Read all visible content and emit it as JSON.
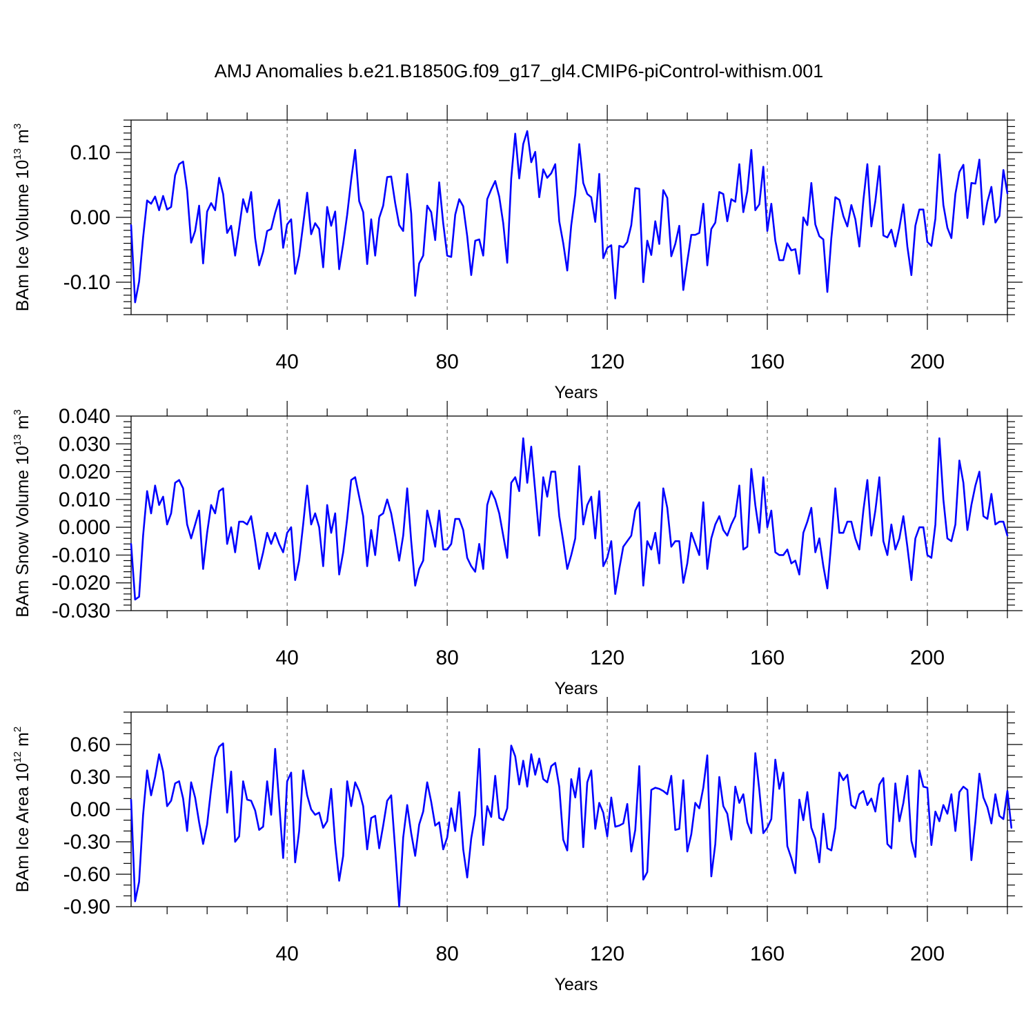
{
  "title": "AMJ Anomalies b.e21.B1850G.f09_g17_gl4.CMIP6-piControl-withism.001",
  "colors": {
    "series": "#0000ff",
    "axes": "#000000",
    "grid": "#555555"
  },
  "chart_data": [
    {
      "type": "line",
      "ylabel": {
        "main": "BAm Ice Volume 10",
        "exp": "13",
        "unit": " m",
        "unit_exp": "3"
      },
      "xlabel": "Years",
      "xlim": [
        1,
        220
      ],
      "ylim": [
        -0.15,
        0.15
      ],
      "xticks": [
        40,
        80,
        120,
        160,
        200
      ],
      "xtick_labels": [
        "40",
        "80",
        "120",
        "160",
        "200"
      ],
      "yticks": [
        -0.1,
        0.0,
        0.1
      ],
      "ytick_labels": [
        "-0.10",
        "0.00",
        "0.10"
      ],
      "yminor": 0.01,
      "xminor": 10,
      "grid": "dashed vertical at major x ticks",
      "series": [
        {
          "x_start": 1,
          "x_step": 1,
          "values": [
            -0.012,
            -0.131,
            -0.099,
            -0.031,
            0.026,
            0.021,
            0.032,
            0.011,
            0.033,
            0.012,
            0.016,
            0.065,
            0.082,
            0.086,
            0.041,
            -0.039,
            -0.021,
            0.018,
            -0.071,
            0.009,
            0.022,
            0.011,
            0.061,
            0.036,
            -0.024,
            -0.013,
            -0.059,
            -0.017,
            0.028,
            0.008,
            0.039,
            -0.032,
            -0.074,
            -0.053,
            -0.021,
            -0.018,
            0.007,
            0.027,
            -0.047,
            -0.011,
            -0.003,
            -0.087,
            -0.059,
            -0.011,
            0.038,
            -0.026,
            -0.009,
            -0.018,
            -0.077,
            0.016,
            -0.013,
            0.009,
            -0.08,
            -0.041,
            0.004,
            0.058,
            0.104,
            0.025,
            0.008,
            -0.072,
            -0.003,
            -0.059,
            -0.001,
            0.018,
            0.062,
            0.063,
            0.022,
            -0.012,
            -0.021,
            0.067,
            0.006,
            -0.121,
            -0.071,
            -0.059,
            0.018,
            0.008,
            -0.035,
            0.054,
            -0.009,
            -0.059,
            -0.061,
            0.004,
            0.028,
            0.017,
            -0.029,
            -0.089,
            -0.036,
            -0.034,
            -0.059,
            0.028,
            0.043,
            0.056,
            0.032,
            -0.009,
            -0.07,
            0.06,
            0.129,
            0.06,
            0.113,
            0.133,
            0.085,
            0.101,
            0.031,
            0.074,
            0.061,
            0.068,
            0.082,
            -0.006,
            -0.04,
            -0.082,
            -0.012,
            0.035,
            0.113,
            0.053,
            0.036,
            0.031,
            -0.007,
            0.067,
            -0.063,
            -0.047,
            -0.043,
            -0.125,
            -0.044,
            -0.046,
            -0.038,
            -0.012,
            0.045,
            0.044,
            -0.1,
            -0.036,
            -0.058,
            -0.006,
            -0.041,
            0.042,
            0.03,
            -0.06,
            -0.041,
            -0.013,
            -0.112,
            -0.068,
            -0.027,
            -0.027,
            -0.024,
            0.021,
            -0.074,
            -0.018,
            -0.008,
            0.039,
            0.036,
            -0.006,
            0.028,
            0.024,
            0.082,
            0.008,
            0.04,
            0.104,
            0.011,
            0.02,
            0.078,
            -0.021,
            0.021,
            -0.036,
            -0.066,
            -0.066,
            -0.04,
            -0.051,
            -0.049,
            -0.087,
            0.0,
            -0.012,
            0.053,
            -0.011,
            -0.029,
            -0.034,
            -0.115,
            -0.032,
            0.031,
            0.027,
            0.002,
            -0.014,
            0.019,
            -0.003,
            -0.045,
            0.026,
            0.082,
            -0.014,
            0.025,
            0.079,
            -0.028,
            -0.031,
            -0.019,
            -0.045,
            -0.016,
            0.02,
            -0.045,
            -0.089,
            -0.013,
            0.012,
            0.012,
            -0.038,
            -0.044,
            -0.002,
            0.097,
            0.019,
            -0.016,
            -0.032,
            0.036,
            0.07,
            0.081,
            -0.001,
            0.053,
            0.052,
            0.089,
            -0.011,
            0.024,
            0.047,
            -0.008,
            0.002,
            0.073,
            0.037
          ]
        }
      ]
    },
    {
      "type": "line",
      "ylabel": {
        "main": "BAm Snow Volume 10",
        "exp": "13",
        "unit": " m",
        "unit_exp": "3"
      },
      "xlabel": "Years",
      "xlim": [
        1,
        220
      ],
      "ylim": [
        -0.03,
        0.04
      ],
      "xticks": [
        40,
        80,
        120,
        160,
        200
      ],
      "xtick_labels": [
        "40",
        "80",
        "120",
        "160",
        "200"
      ],
      "yticks": [
        -0.03,
        -0.02,
        -0.01,
        0.0,
        0.01,
        0.02,
        0.03,
        0.04
      ],
      "ytick_labels": [
        "-0.030",
        "-0.020",
        "-0.010",
        "0.000",
        "0.010",
        "0.020",
        "0.030",
        "0.040"
      ],
      "yminor": 0.002,
      "xminor": 10,
      "grid": "dashed vertical at major x ticks",
      "series": [
        {
          "x_start": 1,
          "x_step": 1,
          "values": [
            -0.006,
            -0.026,
            -0.025,
            -0.003,
            0.013,
            0.005,
            0.015,
            0.008,
            0.011,
            0.001,
            0.005,
            0.016,
            0.017,
            0.014,
            0.001,
            -0.004,
            0.001,
            0.006,
            -0.015,
            -0.002,
            0.008,
            0.005,
            0.013,
            0.014,
            -0.006,
            0.0,
            -0.009,
            0.002,
            0.002,
            0.001,
            0.004,
            -0.005,
            -0.015,
            -0.009,
            -0.002,
            -0.006,
            -0.002,
            -0.006,
            -0.009,
            -0.002,
            0.0,
            -0.019,
            -0.012,
            0.001,
            0.015,
            0.001,
            0.005,
            0.0,
            -0.014,
            0.008,
            -0.002,
            0.005,
            -0.017,
            -0.009,
            0.003,
            0.017,
            0.018,
            0.011,
            0.004,
            -0.014,
            -0.001,
            -0.01,
            0.004,
            0.005,
            0.01,
            0.005,
            -0.003,
            -0.012,
            -0.003,
            0.014,
            -0.005,
            -0.021,
            -0.015,
            -0.012,
            0.006,
            0.0,
            -0.007,
            0.006,
            -0.008,
            -0.008,
            -0.006,
            0.003,
            0.003,
            -0.001,
            -0.011,
            -0.014,
            -0.016,
            -0.006,
            -0.015,
            0.008,
            0.013,
            0.01,
            0.005,
            -0.003,
            -0.011,
            0.016,
            0.018,
            0.013,
            0.032,
            0.016,
            0.029,
            0.013,
            -0.003,
            0.018,
            0.011,
            0.02,
            0.02,
            0.004,
            -0.005,
            -0.015,
            -0.01,
            -0.004,
            0.022,
            0.001,
            0.008,
            0.011,
            -0.004,
            0.013,
            -0.014,
            -0.011,
            -0.005,
            -0.024,
            -0.015,
            -0.007,
            -0.005,
            -0.003,
            0.006,
            0.009,
            -0.021,
            -0.005,
            -0.008,
            -0.002,
            -0.013,
            0.014,
            0.007,
            -0.007,
            -0.005,
            -0.005,
            -0.02,
            -0.013,
            -0.002,
            -0.006,
            -0.01,
            0.009,
            -0.015,
            -0.004,
            0.001,
            0.004,
            -0.001,
            -0.003,
            0.001,
            0.004,
            0.015,
            -0.008,
            -0.007,
            0.021,
            0.008,
            -0.002,
            0.018,
            0.0,
            0.006,
            -0.009,
            -0.01,
            -0.01,
            -0.008,
            -0.013,
            -0.012,
            -0.017,
            -0.002,
            0.002,
            0.007,
            -0.009,
            -0.004,
            -0.014,
            -0.022,
            -0.005,
            0.014,
            -0.002,
            -0.002,
            0.002,
            0.002,
            -0.004,
            -0.008,
            0.006,
            0.017,
            -0.003,
            0.006,
            0.018,
            -0.005,
            -0.01,
            0.001,
            -0.008,
            -0.004,
            0.004,
            -0.007,
            -0.019,
            -0.004,
            0.0,
            0.0,
            -0.01,
            -0.011,
            0.001,
            0.032,
            0.01,
            -0.004,
            -0.005,
            0.001,
            0.024,
            0.016,
            -0.001,
            0.008,
            0.015,
            0.02,
            0.004,
            0.003,
            0.012,
            0.001,
            0.002,
            0.002,
            -0.003
          ]
        }
      ]
    },
    {
      "type": "line",
      "ylabel": {
        "main": "BAm Ice Area 10",
        "exp": "12",
        "unit": " m",
        "unit_exp": "2"
      },
      "xlabel": "Years",
      "xlim": [
        1,
        220
      ],
      "ylim": [
        -0.9,
        0.9
      ],
      "xticks": [
        40,
        80,
        120,
        160,
        200
      ],
      "xtick_labels": [
        "40",
        "80",
        "120",
        "160",
        "200"
      ],
      "yticks": [
        -0.9,
        -0.6,
        -0.3,
        0.0,
        0.3,
        0.6
      ],
      "ytick_labels": [
        "-0.90",
        "-0.60",
        "-0.30",
        "0.00",
        "0.30",
        "0.60"
      ],
      "yminor": 0.1,
      "xminor": 10,
      "grid": "dashed vertical at major x ticks",
      "series": [
        {
          "x_start": 1,
          "x_step": 1,
          "values": [
            0.09,
            -0.85,
            -0.67,
            -0.05,
            0.36,
            0.13,
            0.3,
            0.51,
            0.35,
            0.03,
            0.08,
            0.24,
            0.26,
            0.1,
            -0.2,
            0.25,
            0.11,
            -0.12,
            -0.32,
            -0.14,
            0.19,
            0.48,
            0.58,
            0.61,
            -0.03,
            0.35,
            -0.3,
            -0.25,
            0.26,
            0.09,
            0.08,
            -0.01,
            -0.19,
            -0.16,
            0.26,
            -0.05,
            0.56,
            0.06,
            -0.45,
            0.26,
            0.34,
            -0.49,
            -0.2,
            0.36,
            0.13,
            0.0,
            -0.05,
            -0.03,
            -0.17,
            -0.11,
            0.19,
            -0.31,
            -0.66,
            -0.43,
            0.26,
            0.03,
            0.25,
            0.17,
            0.03,
            -0.37,
            -0.08,
            -0.06,
            -0.36,
            -0.15,
            0.08,
            0.13,
            -0.37,
            -0.9,
            -0.26,
            0.04,
            -0.22,
            -0.43,
            -0.14,
            -0.02,
            0.25,
            0.07,
            -0.15,
            -0.12,
            -0.37,
            -0.26,
            0.01,
            -0.2,
            0.16,
            -0.37,
            -0.63,
            -0.27,
            -0.05,
            0.56,
            -0.33,
            0.03,
            -0.07,
            0.31,
            -0.08,
            -0.1,
            0.01,
            0.59,
            0.49,
            0.23,
            0.45,
            0.21,
            0.51,
            0.32,
            0.47,
            0.28,
            0.25,
            0.4,
            0.43,
            0.21,
            -0.28,
            -0.38,
            0.28,
            0.11,
            0.38,
            -0.35,
            0.25,
            0.36,
            -0.18,
            0.06,
            -0.03,
            -0.25,
            0.11,
            -0.16,
            -0.15,
            -0.13,
            0.05,
            -0.39,
            -0.19,
            0.4,
            -0.65,
            -0.58,
            0.18,
            0.2,
            0.19,
            0.17,
            0.14,
            0.31,
            -0.19,
            -0.18,
            0.27,
            -0.39,
            -0.23,
            0.06,
            0.01,
            0.2,
            0.5,
            -0.62,
            -0.32,
            0.3,
            0.03,
            -0.04,
            -0.28,
            0.21,
            0.06,
            0.14,
            -0.12,
            -0.22,
            0.52,
            0.18,
            -0.22,
            -0.17,
            -0.09,
            0.46,
            0.19,
            0.34,
            -0.34,
            -0.45,
            -0.59,
            0.09,
            -0.1,
            0.16,
            -0.17,
            -0.27,
            -0.49,
            -0.04,
            -0.36,
            -0.38,
            -0.17,
            0.34,
            0.27,
            0.32,
            0.04,
            0.01,
            0.14,
            0.17,
            0.04,
            0.1,
            -0.02,
            0.23,
            0.29,
            -0.32,
            -0.36,
            0.24,
            -0.11,
            0.06,
            0.31,
            -0.29,
            -0.44,
            0.36,
            0.21,
            0.2,
            -0.33,
            -0.02,
            -0.11,
            0.04,
            -0.04,
            0.14,
            -0.2,
            0.16,
            0.21,
            0.18,
            -0.47,
            -0.11,
            0.33,
            0.11,
            0.02,
            -0.13,
            0.14,
            -0.06,
            -0.09,
            0.17,
            -0.17
          ]
        }
      ]
    }
  ]
}
